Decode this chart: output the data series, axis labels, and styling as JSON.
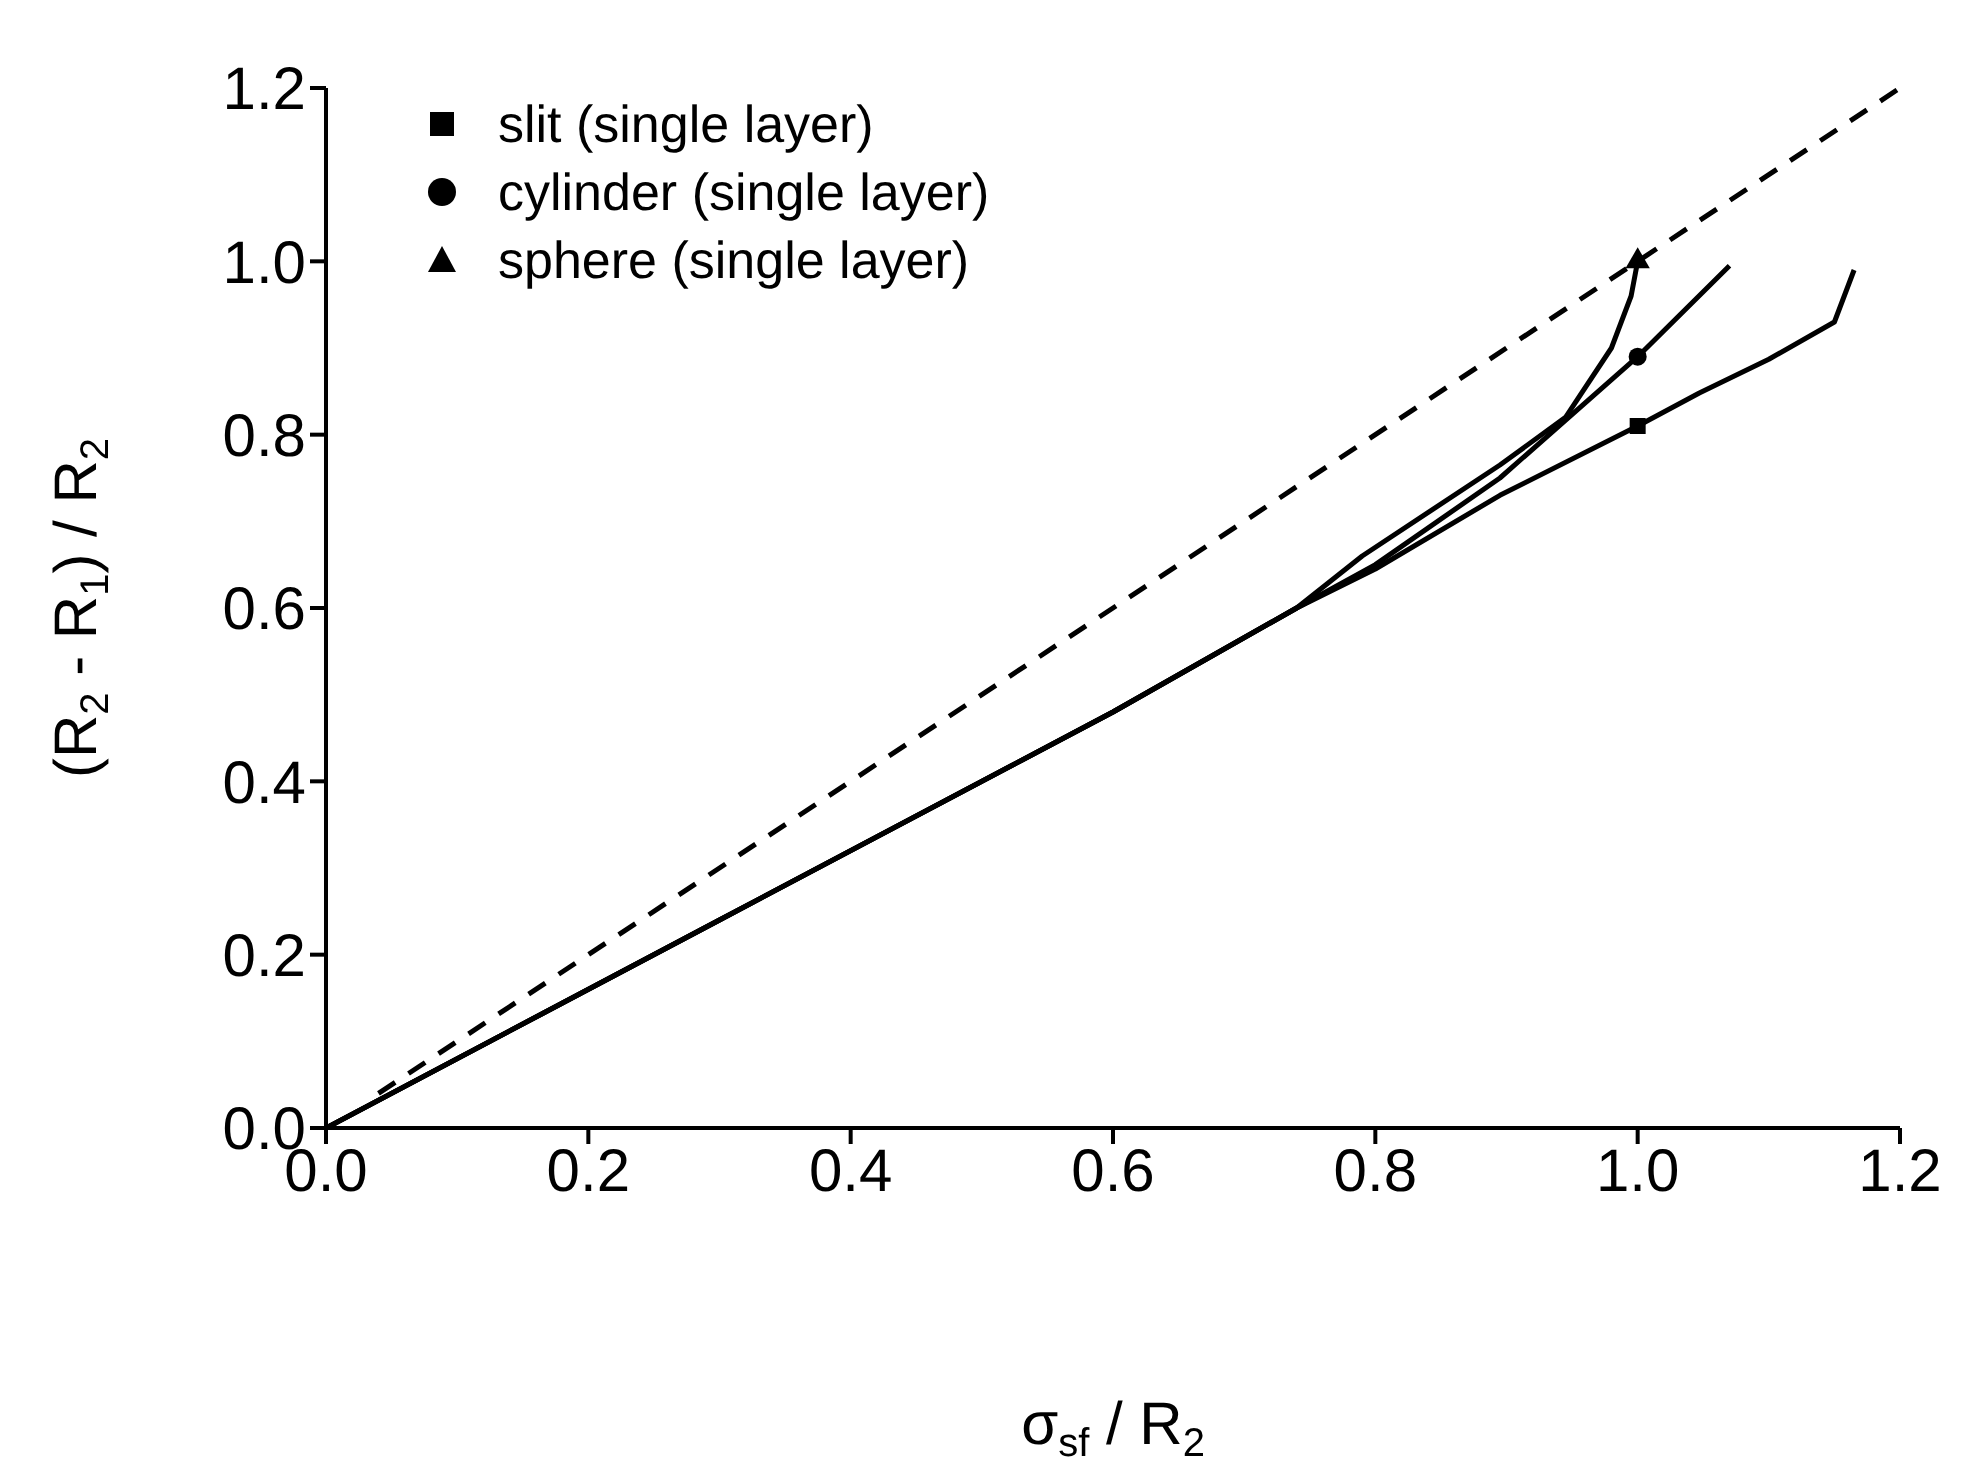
{
  "chart_data": {
    "type": "line",
    "xlabel": "σ$_{sf}$ / R$_{2}$",
    "ylabel": "(R$_{2}$ - R$_{1}$) / R$_{2}$",
    "xlim": [
      0,
      1.2
    ],
    "ylim": [
      0,
      1.2
    ],
    "xticks": [
      {
        "value": 0,
        "label": "0.0"
      },
      0.2,
      0.4,
      0.6,
      0.8,
      {
        "value": 1,
        "label": "1.0"
      },
      1.2
    ],
    "yticks": [
      {
        "value": 0,
        "label": "0.0"
      },
      0.2,
      0.4,
      0.6,
      0.8,
      {
        "value": 1,
        "label": "1.0"
      },
      1.2
    ],
    "grid": false,
    "legend": "top left",
    "series": [
      {
        "color": "#000000",
        "line_style": "dashed",
        "marker": "none",
        "x": [
          0.04,
          1.2
        ],
        "values": [
          0.04,
          1.2
        ]
      },
      {
        "color": "#000000",
        "line_style": "solid",
        "marker": "none",
        "x": [
          0,
          0.3,
          0.6,
          0.74,
          0.8,
          0.895,
          1.0,
          1.047,
          1.1,
          1.15,
          1.165
        ],
        "values": [
          0,
          0.24,
          0.48,
          0.6,
          0.645,
          0.73,
          0.81,
          0.848,
          0.887,
          0.93,
          0.99
        ]
      },
      {
        "color": "#000000",
        "line_style": "solid",
        "marker": "none",
        "x": [
          0,
          0.3,
          0.6,
          0.74,
          0.8,
          0.895,
          1.0,
          1.07
        ],
        "values": [
          0,
          0.24,
          0.48,
          0.6,
          0.65,
          0.75,
          0.89,
          0.995
        ]
      },
      {
        "color": "#000000",
        "line_style": "solid",
        "marker": "none",
        "x": [
          0,
          0.3,
          0.6,
          0.74,
          0.79,
          0.895,
          0.945,
          0.98,
          0.995,
          1.0
        ],
        "values": [
          0,
          0.24,
          0.48,
          0.6,
          0.66,
          0.765,
          0.82,
          0.9,
          0.96,
          1.0
        ]
      },
      {
        "type": "scatter",
        "name": "slit (single layer)",
        "color": "#000000",
        "marker": "square",
        "x": [
          1.0
        ],
        "values": [
          0.81
        ]
      },
      {
        "type": "scatter",
        "name": "cylinder (single layer)",
        "color": "#000000",
        "marker": "circle",
        "x": [
          1.0
        ],
        "values": [
          0.89
        ]
      },
      {
        "type": "scatter",
        "name": "sphere (single layer)",
        "color": "#000000",
        "marker": "triangle",
        "x": [
          1.0
        ],
        "values": [
          1.0
        ]
      }
    ]
  }
}
